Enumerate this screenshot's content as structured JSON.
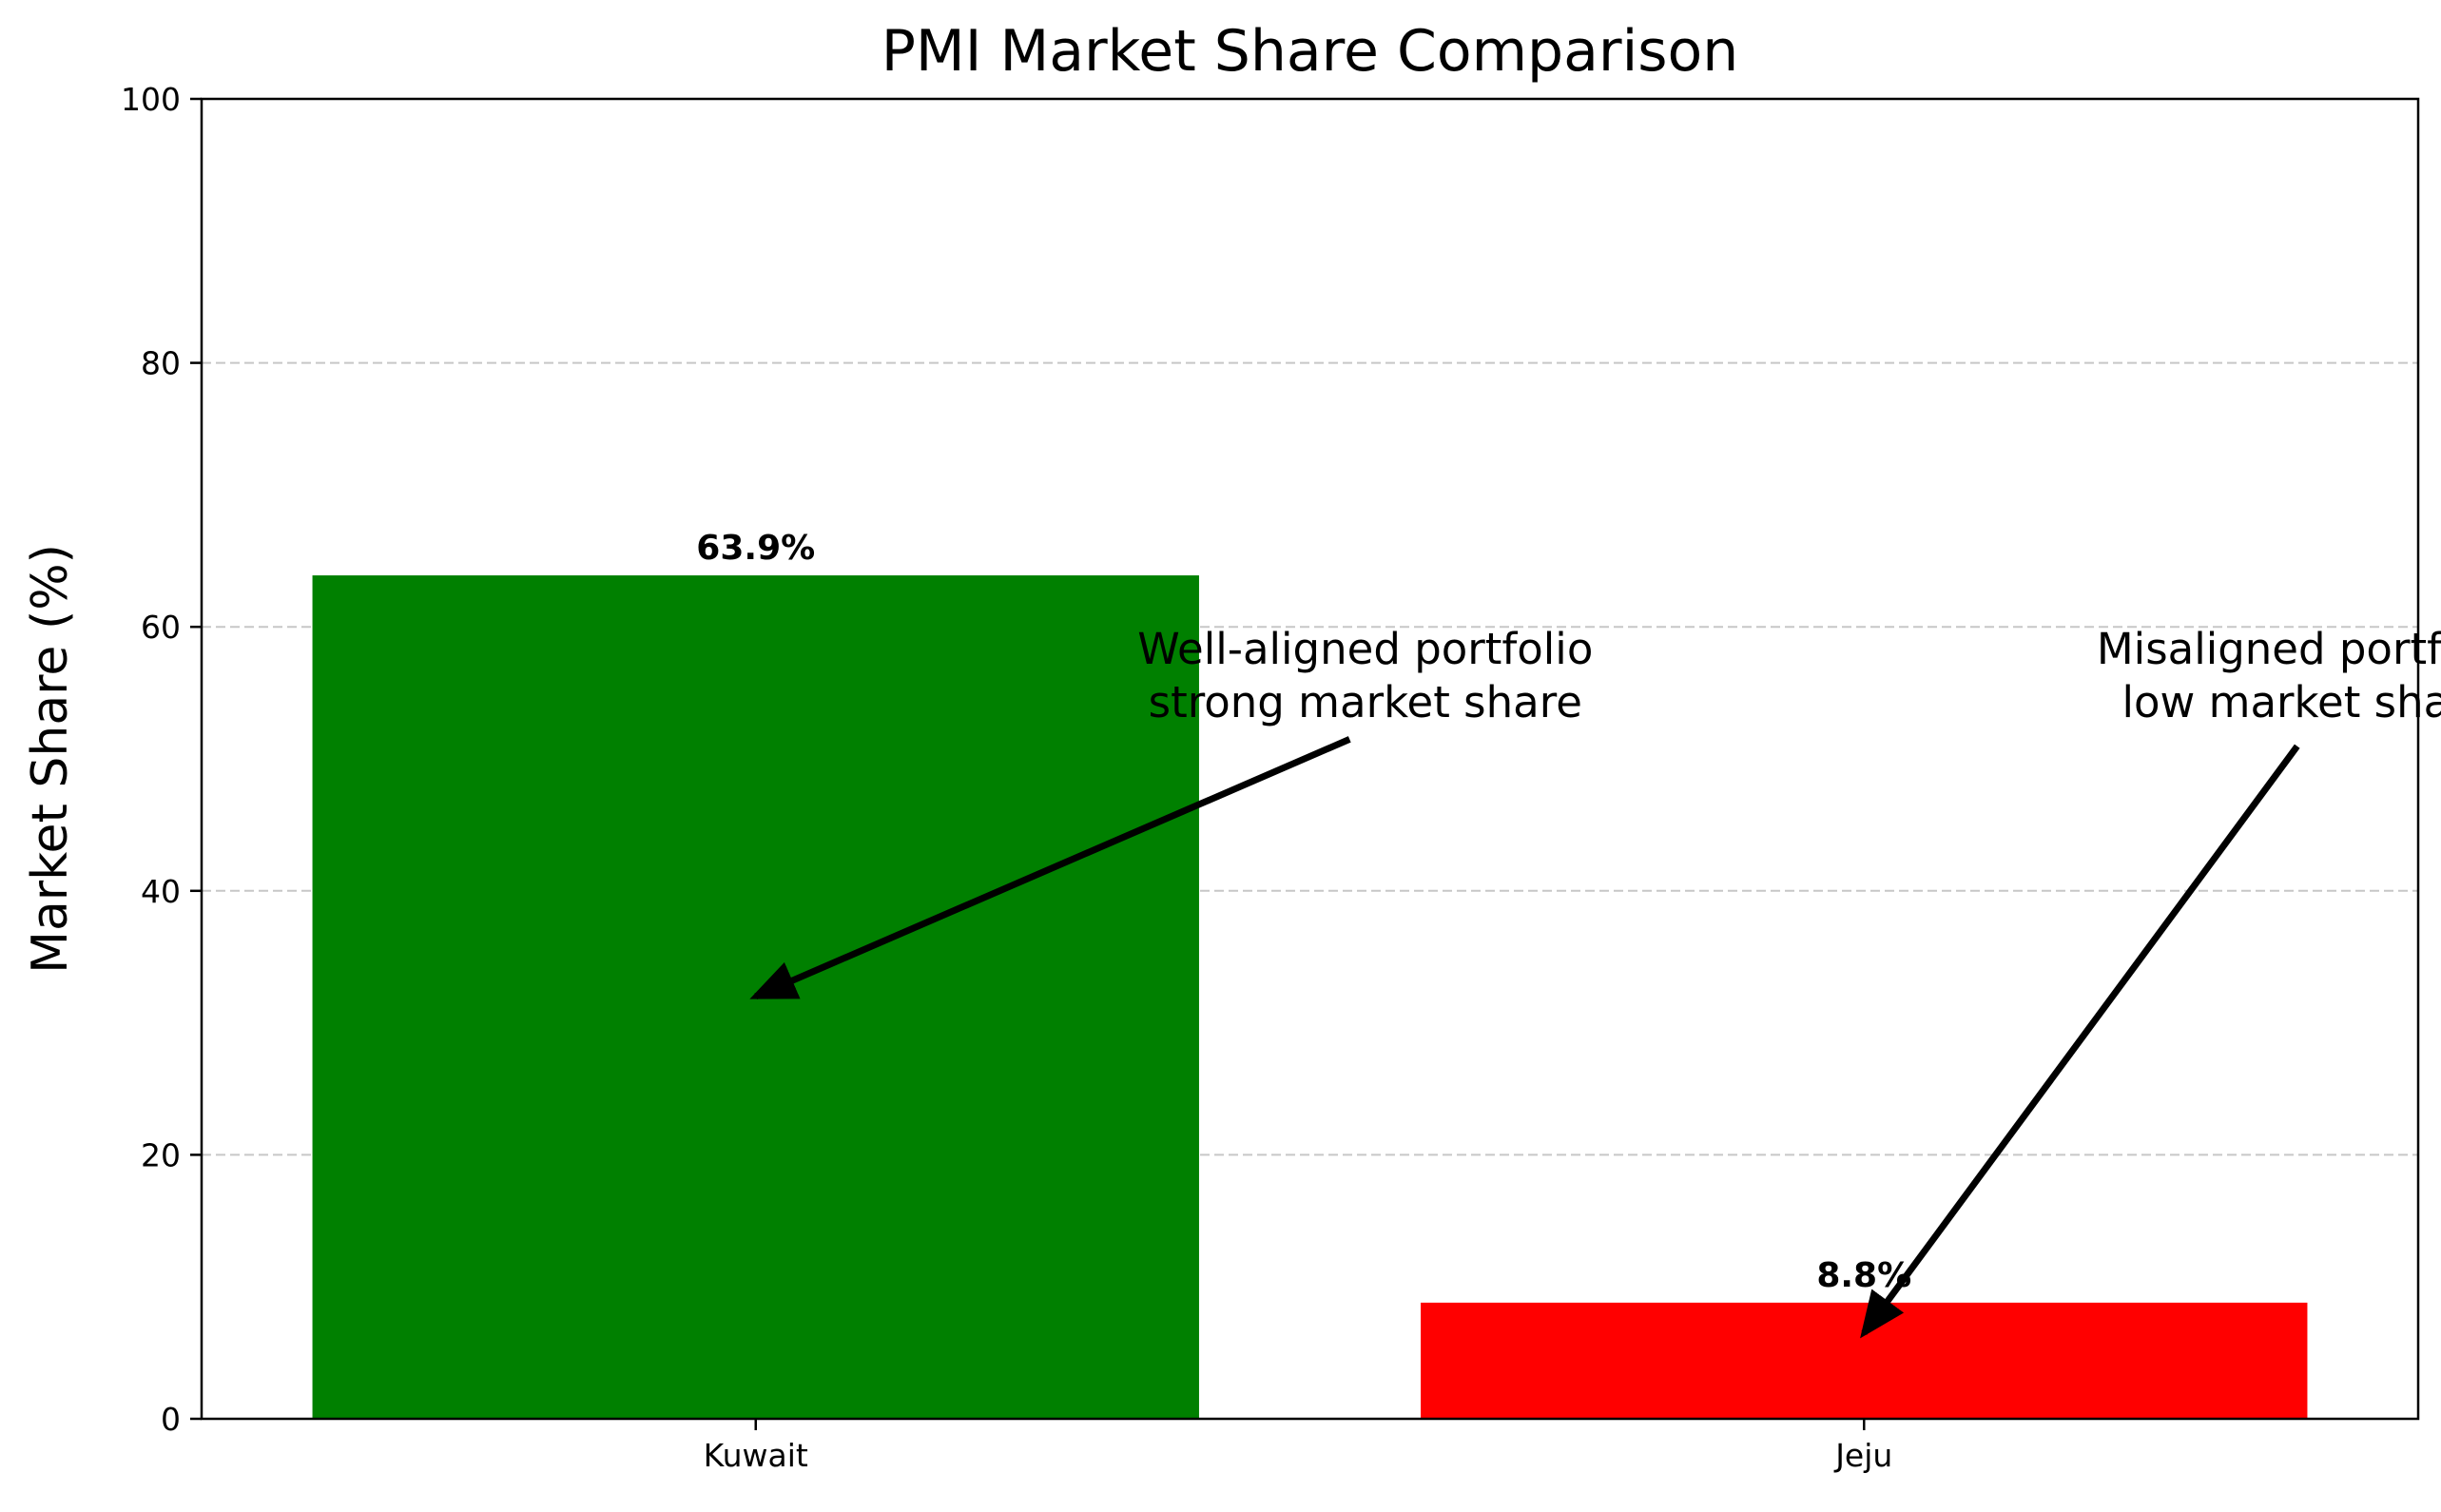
{
  "chart_data": {
    "type": "bar",
    "title": "PMI Market Share Comparison",
    "xlabel": "",
    "ylabel": "Market Share (%)",
    "categories": [
      "Kuwait",
      "Jeju"
    ],
    "values": [
      63.9,
      8.8
    ],
    "value_labels": [
      "63.9%",
      "8.8%"
    ],
    "bar_colors": [
      "#008000",
      "#ff0000"
    ],
    "ylim": [
      0,
      100
    ],
    "yticks": [
      0,
      20,
      40,
      60,
      80,
      100
    ],
    "ytick_labels": [
      "0",
      "20",
      "40",
      "60",
      "80",
      "100"
    ],
    "grid": "y-dashed",
    "legend": "none",
    "annotations": [
      {
        "lines": [
          "Well-aligned portfolio",
          "strong market share"
        ],
        "text_at": {
          "x": 0.55,
          "y": 52
        },
        "arrow_to": {
          "x": 0.0,
          "y": 32
        }
      },
      {
        "lines": [
          "Misaligned portfolio",
          "low market share"
        ],
        "text_at": {
          "x": 1.4,
          "y": 52
        },
        "arrow_to": {
          "x": 1.0,
          "y": 6.5
        }
      }
    ]
  }
}
